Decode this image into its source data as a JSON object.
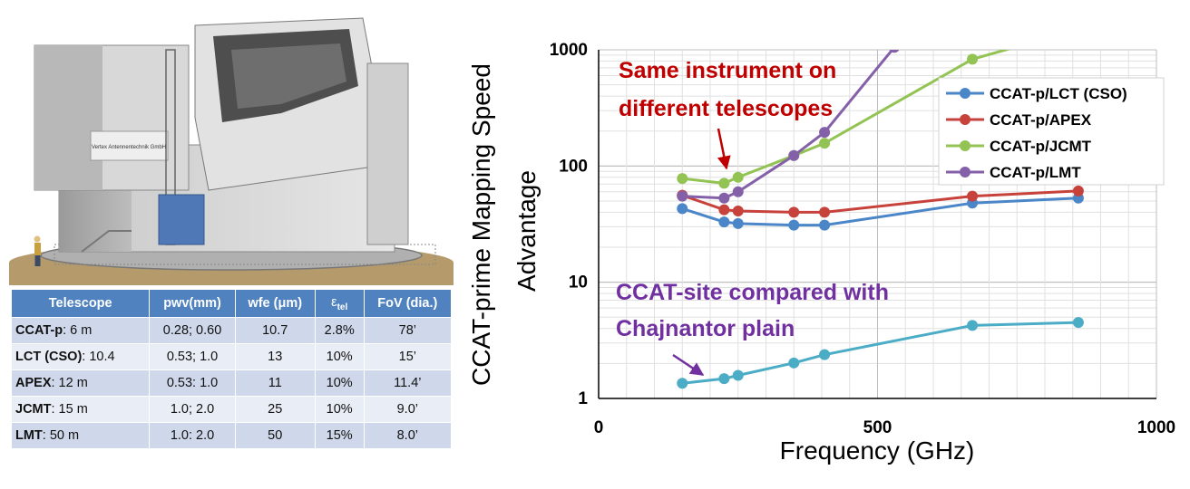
{
  "table": {
    "headers": [
      "Telescope",
      "pwv(mm)",
      "wfe (μm)",
      "ε",
      "tel",
      "FoV  (dia.)"
    ],
    "rows": [
      {
        "name": "CCAT-p",
        "size": ": 6 m",
        "pwv": "0.28; 0.60",
        "wfe": "10.7",
        "eps": "2.8%",
        "fov": "78’"
      },
      {
        "name": "LCT (CSO)",
        "size": ": 10.4",
        "pwv": "0.53; 1.0",
        "wfe": "13",
        "eps": "10%",
        "fov": "15’"
      },
      {
        "name": "APEX",
        "size": ": 12 m",
        "pwv": "0.53: 1.0",
        "wfe": "11",
        "eps": "10%",
        "fov": "11.4’"
      },
      {
        "name": "JCMT",
        "size": ": 15 m",
        "pwv": "1.0; 2.0",
        "wfe": "25",
        "eps": "10%",
        "fov": "9.0’"
      },
      {
        "name": "LMT",
        "size": ": 50 m",
        "pwv": "1.0: 2.0",
        "wfe": "50",
        "eps": "15%",
        "fov": "8.0’"
      }
    ]
  },
  "illustration": {
    "sign_text": "Vertex Antennentechnik GmbH"
  },
  "chart_data": {
    "type": "line",
    "xlabel": "Frequency (GHz)",
    "ylabel_lines": [
      "CCAT-prime Mapping Speed",
      "Advantage"
    ],
    "xlim": [
      0,
      1000
    ],
    "ylim": [
      1,
      1000
    ],
    "yscale": "log",
    "xticks": [
      0,
      500,
      1000
    ],
    "xtick_labels": [
      "0",
      "500",
      "1000"
    ],
    "yticks": [
      1,
      10,
      100,
      1000
    ],
    "ytick_labels": [
      "1",
      "10",
      "100",
      "1000"
    ],
    "grid": true,
    "legend_position": "top-right",
    "series": [
      {
        "name": "CCAT-p/LCT (CSO)",
        "color": "#4a86c8",
        "x": [
          150,
          225,
          250,
          350,
          405,
          670,
          860
        ],
        "y": [
          43,
          33,
          32,
          31,
          31,
          48,
          53
        ]
      },
      {
        "name": "CCAT-p/APEX",
        "color": "#c8423c",
        "x": [
          150,
          225,
          250,
          350,
          405,
          670,
          860
        ],
        "y": [
          56,
          42,
          41,
          40,
          40,
          55,
          61
        ]
      },
      {
        "name": "CCAT-p/JCMT",
        "color": "#92c353",
        "x": [
          150,
          225,
          250,
          350,
          405,
          670,
          860
        ],
        "y": [
          78,
          71,
          80,
          123,
          157,
          830,
          1500
        ]
      },
      {
        "name": "CCAT-p/LMT",
        "color": "#8460a8",
        "x": [
          150,
          225,
          250,
          350,
          405,
          530
        ],
        "y": [
          55,
          53,
          60,
          123,
          195,
          1050
        ]
      },
      {
        "name": "",
        "color": "#4bacc6",
        "x": [
          150,
          225,
          250,
          350,
          405,
          670,
          860
        ],
        "y": [
          1.35,
          1.48,
          1.58,
          2.02,
          2.38,
          4.25,
          4.5
        ]
      }
    ],
    "annotations": [
      {
        "lines": [
          "Same instrument on",
          "different telescopes"
        ],
        "color": "#c00000"
      },
      {
        "lines": [
          "CCAT-site compared with",
          "Chajnantor plain"
        ],
        "color": "#7030a0"
      }
    ]
  }
}
